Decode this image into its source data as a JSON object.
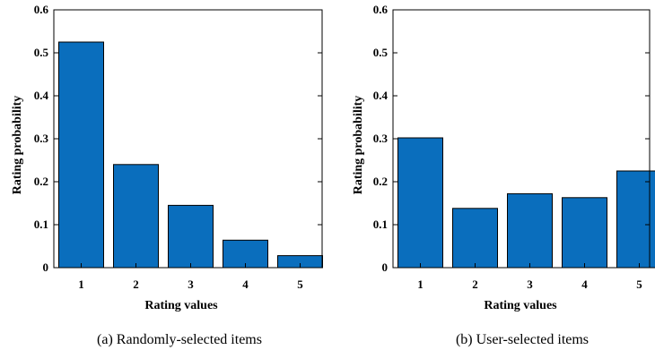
{
  "chart_data": [
    {
      "type": "bar",
      "panel": "a",
      "categories": [
        "1",
        "2",
        "3",
        "4",
        "5"
      ],
      "values": [
        0.525,
        0.24,
        0.145,
        0.064,
        0.028
      ],
      "title": "",
      "caption": "(a)  Randomly-selected items",
      "xlabel": "Rating values",
      "ylabel": "Rating probability",
      "ylim": [
        0,
        0.6
      ],
      "yticks": [
        "0",
        "0.1",
        "0.2",
        "0.3",
        "0.4",
        "0.5",
        "0.6"
      ],
      "bar_color": "#0a6ebd",
      "grid": false
    },
    {
      "type": "bar",
      "panel": "b",
      "categories": [
        "1",
        "2",
        "3",
        "4",
        "5"
      ],
      "values": [
        0.302,
        0.138,
        0.172,
        0.163,
        0.225
      ],
      "title": "",
      "caption": "(b)  User-selected items",
      "xlabel": "Rating values",
      "ylabel": "Rating probability",
      "ylim": [
        0,
        0.6
      ],
      "yticks": [
        "0",
        "0.1",
        "0.2",
        "0.3",
        "0.4",
        "0.5",
        "0.6"
      ],
      "bar_color": "#0a6ebd",
      "grid": false
    }
  ]
}
